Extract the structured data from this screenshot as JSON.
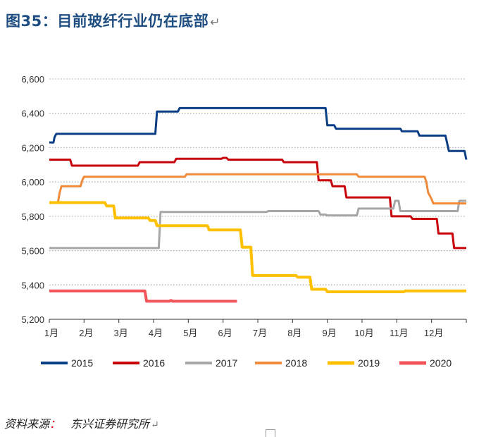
{
  "title": "图35：目前玻纤行业仍在底部",
  "para_mark": "↵",
  "source": {
    "label": "资料来源",
    "colon": "：",
    "org": "东兴证券研究所"
  },
  "chart_data": {
    "type": "line",
    "x_domain": [
      0,
      12
    ],
    "x_ticks": [
      0,
      1,
      2,
      3,
      4,
      5,
      6,
      7,
      8,
      9,
      10,
      11
    ],
    "x_tick_labels": [
      "1月",
      "2月",
      "3月",
      "4月",
      "5月",
      "6月",
      "7月",
      "8月",
      "9月",
      "10月",
      "11月",
      "12月"
    ],
    "ylim": [
      5200,
      6600
    ],
    "y_ticks": [
      5200,
      5400,
      5600,
      5800,
      6000,
      6200,
      6400,
      6600
    ],
    "y_tick_labels": [
      "5,200",
      "5,400",
      "5,600",
      "5,800",
      "6,000",
      "6,200",
      "6,400",
      "6,600"
    ],
    "grid": "horizontal-dotted",
    "legend_position": "bottom",
    "series": [
      {
        "name": "2015",
        "color": "#0b3e85",
        "width": 3,
        "points": [
          [
            0,
            6230
          ],
          [
            0.12,
            6230
          ],
          [
            0.15,
            6260
          ],
          [
            0.2,
            6280
          ],
          [
            3.05,
            6280
          ],
          [
            3.1,
            6410
          ],
          [
            3.7,
            6410
          ],
          [
            3.75,
            6430
          ],
          [
            7.95,
            6430
          ],
          [
            8.0,
            6330
          ],
          [
            8.2,
            6330
          ],
          [
            8.25,
            6310
          ],
          [
            10.1,
            6310
          ],
          [
            10.15,
            6295
          ],
          [
            10.6,
            6295
          ],
          [
            10.65,
            6270
          ],
          [
            11.4,
            6270
          ],
          [
            11.5,
            6180
          ],
          [
            11.95,
            6180
          ],
          [
            12.0,
            6130
          ]
        ]
      },
      {
        "name": "2016",
        "color": "#c8000a",
        "width": 3,
        "points": [
          [
            0,
            6130
          ],
          [
            0.6,
            6130
          ],
          [
            0.65,
            6095
          ],
          [
            2.55,
            6095
          ],
          [
            2.6,
            6115
          ],
          [
            3.6,
            6115
          ],
          [
            3.65,
            6135
          ],
          [
            4.95,
            6135
          ],
          [
            5.0,
            6140
          ],
          [
            5.1,
            6140
          ],
          [
            5.15,
            6130
          ],
          [
            6.7,
            6130
          ],
          [
            6.75,
            6115
          ],
          [
            7.7,
            6115
          ],
          [
            7.75,
            6010
          ],
          [
            8.1,
            6010
          ],
          [
            8.15,
            5975
          ],
          [
            8.5,
            5975
          ],
          [
            8.55,
            5910
          ],
          [
            9.8,
            5910
          ],
          [
            9.85,
            5800
          ],
          [
            10.4,
            5800
          ],
          [
            10.45,
            5785
          ],
          [
            11.15,
            5785
          ],
          [
            11.2,
            5700
          ],
          [
            11.6,
            5700
          ],
          [
            11.65,
            5615
          ],
          [
            12.0,
            5615
          ]
        ]
      },
      {
        "name": "2017",
        "color": "#a6a6a6",
        "width": 3,
        "points": [
          [
            0,
            5615
          ],
          [
            3.15,
            5615
          ],
          [
            3.2,
            5825
          ],
          [
            6.25,
            5825
          ],
          [
            6.3,
            5830
          ],
          [
            7.75,
            5830
          ],
          [
            7.8,
            5810
          ],
          [
            7.95,
            5810
          ],
          [
            8.0,
            5805
          ],
          [
            8.85,
            5805
          ],
          [
            8.9,
            5845
          ],
          [
            9.9,
            5845
          ],
          [
            9.95,
            5890
          ],
          [
            10.05,
            5890
          ],
          [
            10.1,
            5830
          ],
          [
            11.75,
            5830
          ],
          [
            11.8,
            5890
          ],
          [
            12.0,
            5890
          ]
        ]
      },
      {
        "name": "2018",
        "color": "#ef8a3a",
        "width": 3,
        "points": [
          [
            0,
            5880
          ],
          [
            0.25,
            5880
          ],
          [
            0.3,
            5940
          ],
          [
            0.35,
            5975
          ],
          [
            0.9,
            5975
          ],
          [
            0.95,
            6010
          ],
          [
            1.0,
            6030
          ],
          [
            3.9,
            6030
          ],
          [
            3.95,
            6045
          ],
          [
            8.85,
            6045
          ],
          [
            8.9,
            6030
          ],
          [
            10.8,
            6030
          ],
          [
            10.85,
            6000
          ],
          [
            10.9,
            5940
          ],
          [
            11.0,
            5900
          ],
          [
            11.05,
            5875
          ],
          [
            12.0,
            5875
          ]
        ]
      },
      {
        "name": "2019",
        "color": "#ffc000",
        "width": 4,
        "points": [
          [
            0,
            5880
          ],
          [
            1.6,
            5880
          ],
          [
            1.65,
            5860
          ],
          [
            1.85,
            5860
          ],
          [
            1.9,
            5790
          ],
          [
            2.85,
            5790
          ],
          [
            2.9,
            5775
          ],
          [
            3.05,
            5775
          ],
          [
            3.1,
            5745
          ],
          [
            4.55,
            5745
          ],
          [
            4.6,
            5720
          ],
          [
            5.5,
            5720
          ],
          [
            5.55,
            5620
          ],
          [
            5.8,
            5620
          ],
          [
            5.85,
            5455
          ],
          [
            7.1,
            5455
          ],
          [
            7.15,
            5445
          ],
          [
            7.5,
            5445
          ],
          [
            7.55,
            5375
          ],
          [
            7.95,
            5375
          ],
          [
            8.0,
            5360
          ],
          [
            10.2,
            5360
          ],
          [
            10.25,
            5365
          ],
          [
            12.0,
            5365
          ]
        ]
      },
      {
        "name": "2020",
        "color": "#f2545b",
        "width": 4,
        "points": [
          [
            0,
            5365
          ],
          [
            2.75,
            5365
          ],
          [
            2.8,
            5305
          ],
          [
            3.45,
            5305
          ],
          [
            3.5,
            5310
          ],
          [
            3.55,
            5305
          ],
          [
            5.4,
            5305
          ]
        ]
      }
    ]
  }
}
